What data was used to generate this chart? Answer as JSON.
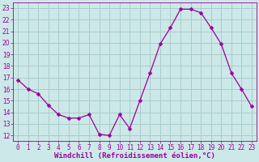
{
  "x": [
    0,
    1,
    2,
    3,
    4,
    5,
    6,
    7,
    8,
    9,
    10,
    11,
    12,
    13,
    14,
    15,
    16,
    17,
    18,
    19,
    20,
    21,
    22,
    23
  ],
  "y": [
    16.8,
    16.0,
    15.6,
    14.6,
    13.8,
    13.5,
    13.5,
    13.8,
    12.1,
    12.0,
    13.8,
    12.6,
    15.0,
    17.4,
    19.9,
    21.3,
    22.9,
    22.9,
    22.6,
    21.3,
    19.9,
    17.4,
    16.0,
    14.5
  ],
  "line_color": "#990099",
  "marker": "D",
  "marker_size": 2.5,
  "bg_color": "#cce8e8",
  "grid_color": "#aacccc",
  "xlabel": "Windchill (Refroidissement éolien,°C)",
  "ylabel_ticks": [
    12,
    13,
    14,
    15,
    16,
    17,
    18,
    19,
    20,
    21,
    22,
    23
  ],
  "xlim": [
    -0.5,
    23.5
  ],
  "ylim": [
    11.5,
    23.5
  ],
  "tick_fontsize": 5.5,
  "label_fontsize": 6.5
}
